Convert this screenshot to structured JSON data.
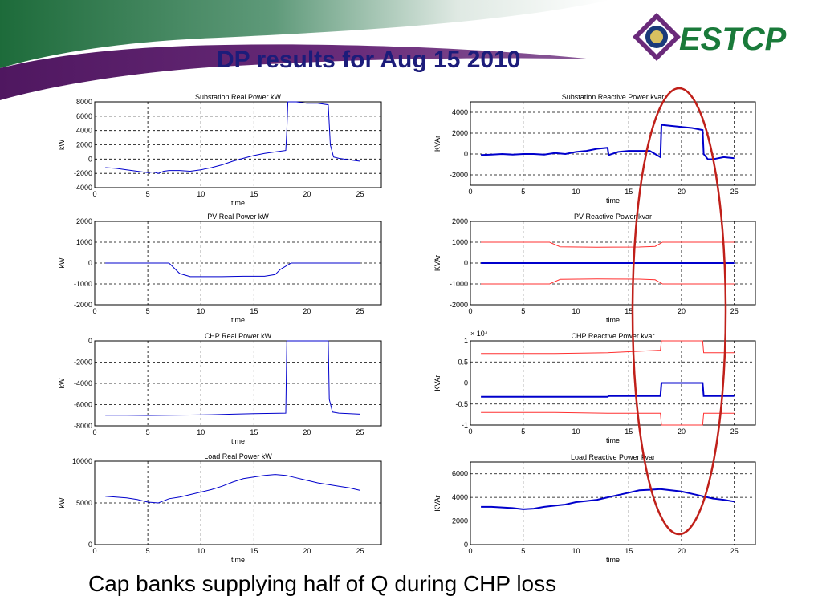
{
  "slide": {
    "title": "DP results for Aug 15 2010",
    "caption": "Cap banks supplying half of Q during CHP loss",
    "logo_text": "ESTCP"
  },
  "colors": {
    "title": "#1c1c7a",
    "swoosh_green": "#1f6a3a",
    "swoosh_purple": "#5a1a6a",
    "series_blue": "#0000cc",
    "limit_red": "#ff3030",
    "ellipse_red": "#c0201a",
    "logo_green": "#1a7a3a",
    "logo_purple": "#6a2a7a"
  },
  "chart_data": [
    {
      "type": "line",
      "title": "Substation Real Power kW",
      "xlabel": "time",
      "ylabel": "kW",
      "xlim": [
        0,
        27
      ],
      "ylim": [
        -4000,
        8000
      ],
      "xticks": [
        0,
        5,
        10,
        15,
        20,
        25
      ],
      "yticks": [
        -4000,
        -2000,
        0,
        2000,
        4000,
        6000,
        8000
      ],
      "grid": true,
      "series": [
        {
          "role": "value",
          "x": [
            1,
            2,
            3,
            4,
            5,
            5.5,
            6,
            6.5,
            7,
            8,
            9,
            10,
            11,
            12,
            13,
            14,
            15,
            16,
            17,
            18,
            18.1,
            18.2,
            19,
            20,
            21,
            22,
            22.2,
            22.5,
            23,
            24,
            25
          ],
          "y": [
            -1200,
            -1300,
            -1500,
            -1700,
            -1900,
            -1800,
            -2000,
            -1700,
            -1600,
            -1600,
            -1700,
            -1500,
            -1200,
            -800,
            -300,
            100,
            500,
            800,
            1000,
            1200,
            4000,
            8000,
            8000,
            7800,
            7800,
            7600,
            2000,
            300,
            100,
            -100,
            -300
          ]
        }
      ]
    },
    {
      "type": "line",
      "title": "Substation Reactive Power kvar",
      "xlabel": "time",
      "ylabel": "KVAr",
      "xlim": [
        0,
        27
      ],
      "ylim": [
        -3000,
        5000
      ],
      "xticks": [
        0,
        5,
        10,
        15,
        20,
        25
      ],
      "yticks": [
        -2000,
        0,
        2000,
        4000
      ],
      "grid": true,
      "series": [
        {
          "role": "value",
          "x": [
            1,
            2,
            3,
            4,
            5,
            6,
            7,
            8,
            9,
            10,
            11,
            12,
            13,
            13.1,
            14,
            15,
            16,
            17,
            18,
            18.1,
            19,
            20,
            21,
            22,
            22.1,
            22.5,
            23,
            24,
            25
          ],
          "y": [
            -100,
            -50,
            0,
            -50,
            0,
            0,
            -50,
            100,
            0,
            200,
            300,
            500,
            600,
            -100,
            200,
            300,
            300,
            300,
            -300,
            2800,
            2700,
            2600,
            2500,
            2300,
            0,
            -500,
            -500,
            -300,
            -400
          ]
        }
      ]
    },
    {
      "type": "line",
      "title": "PV Real Power kW",
      "xlabel": "time",
      "ylabel": "kW",
      "xlim": [
        0,
        27
      ],
      "ylim": [
        -2000,
        2000
      ],
      "xticks": [
        0,
        5,
        10,
        15,
        20,
        25
      ],
      "yticks": [
        -2000,
        -1000,
        0,
        1000,
        2000
      ],
      "grid": true,
      "series": [
        {
          "role": "value",
          "x": [
            1,
            7,
            8,
            9,
            10,
            12,
            14,
            16,
            17,
            17.5,
            18.5,
            19,
            25
          ],
          "y": [
            0,
            0,
            -500,
            -650,
            -650,
            -650,
            -630,
            -630,
            -550,
            -300,
            0,
            0,
            0
          ]
        }
      ]
    },
    {
      "type": "line",
      "title": "PV Reactive Power kvar",
      "xlabel": "time",
      "ylabel": "KVAr",
      "xlim": [
        0,
        27
      ],
      "ylim": [
        -2000,
        2000
      ],
      "xticks": [
        0,
        5,
        10,
        15,
        20,
        25
      ],
      "yticks": [
        -2000,
        -1000,
        0,
        1000,
        2000
      ],
      "grid": true,
      "series": [
        {
          "role": "value",
          "x": [
            1,
            25
          ],
          "y": [
            0,
            0
          ]
        },
        {
          "role": "limit",
          "x": [
            1,
            7.5,
            8.5,
            12,
            16,
            17.5,
            18.2,
            25
          ],
          "y": [
            1000,
            1000,
            780,
            760,
            770,
            800,
            1000,
            1000
          ]
        },
        {
          "role": "limit",
          "x": [
            1,
            7.5,
            8.5,
            12,
            16,
            17.5,
            18.2,
            25
          ],
          "y": [
            -1000,
            -1000,
            -780,
            -760,
            -770,
            -800,
            -1000,
            -1000
          ]
        }
      ]
    },
    {
      "type": "line",
      "title": "CHP Real Power kW",
      "xlabel": "time",
      "ylabel": "kW",
      "xlim": [
        0,
        27
      ],
      "ylim": [
        -8000,
        0
      ],
      "xticks": [
        0,
        5,
        10,
        15,
        20,
        25
      ],
      "yticks": [
        -8000,
        -6000,
        -4000,
        -2000,
        0
      ],
      "grid": true,
      "series": [
        {
          "role": "value",
          "x": [
            1,
            3,
            5,
            7,
            9,
            11,
            13,
            15,
            18,
            18.1,
            22,
            22.1,
            22.4,
            23,
            25
          ],
          "y": [
            -7000,
            -7000,
            -7020,
            -7000,
            -6980,
            -6950,
            -6900,
            -6850,
            -6800,
            0,
            0,
            -5500,
            -6700,
            -6800,
            -6900
          ]
        }
      ]
    },
    {
      "type": "line",
      "title": "CHP Reactive Power kvar",
      "xlabel": "time",
      "ylabel": "KVAr",
      "exponent": "× 10⁴",
      "xlim": [
        0,
        27
      ],
      "ylim": [
        -1,
        1
      ],
      "xticks": [
        0,
        5,
        10,
        15,
        20,
        25
      ],
      "yticks": [
        -1,
        -0.5,
        0,
        0.5,
        1
      ],
      "grid": true,
      "series": [
        {
          "role": "value",
          "x": [
            1,
            13,
            13.1,
            18,
            18.1,
            22,
            22.1,
            25
          ],
          "y": [
            -0.33,
            -0.33,
            -0.31,
            -0.31,
            0,
            0,
            -0.31,
            -0.31
          ]
        },
        {
          "role": "limit",
          "x": [
            1,
            8,
            13,
            18,
            18.1,
            22,
            22.1,
            25
          ],
          "y": [
            0.7,
            0.7,
            0.72,
            0.78,
            1,
            1,
            0.72,
            0.72
          ]
        },
        {
          "role": "limit",
          "x": [
            1,
            8,
            13,
            18,
            18.1,
            22,
            22.1,
            25
          ],
          "y": [
            -0.7,
            -0.7,
            -0.72,
            -0.72,
            -1,
            -1,
            -0.72,
            -0.72
          ]
        }
      ]
    },
    {
      "type": "line",
      "title": "Load Real Power kW",
      "xlabel": "time",
      "ylabel": "kW",
      "xlim": [
        0,
        27
      ],
      "ylim": [
        0,
        10000
      ],
      "xticks": [
        0,
        5,
        10,
        15,
        20,
        25
      ],
      "yticks": [
        0,
        5000,
        10000
      ],
      "grid": true,
      "series": [
        {
          "role": "value",
          "x": [
            1,
            2,
            3,
            4,
            5,
            6,
            7,
            8,
            9,
            10,
            11,
            12,
            13,
            14,
            15,
            16,
            17,
            18,
            19,
            20,
            21,
            22,
            23,
            24,
            25
          ],
          "y": [
            5800,
            5700,
            5600,
            5400,
            5100,
            5000,
            5500,
            5700,
            6000,
            6300,
            6600,
            7000,
            7500,
            7900,
            8100,
            8300,
            8400,
            8300,
            8000,
            7700,
            7400,
            7200,
            7000,
            6800,
            6500
          ]
        }
      ]
    },
    {
      "type": "line",
      "title": "Load Reactive Power kvar",
      "xlabel": "time",
      "ylabel": "KVAr",
      "xlim": [
        0,
        27
      ],
      "ylim": [
        0,
        7000
      ],
      "xticks": [
        0,
        5,
        10,
        15,
        20,
        25
      ],
      "yticks": [
        0,
        2000,
        4000,
        6000
      ],
      "grid": true,
      "series": [
        {
          "role": "value",
          "x": [
            1,
            2,
            3,
            4,
            5,
            6,
            7,
            8,
            9,
            10,
            11,
            12,
            13,
            14,
            15,
            16,
            17,
            18,
            19,
            20,
            21,
            22,
            23,
            24,
            25
          ],
          "y": [
            3200,
            3200,
            3150,
            3100,
            3000,
            3050,
            3200,
            3300,
            3400,
            3600,
            3700,
            3800,
            4000,
            4200,
            4400,
            4600,
            4650,
            4700,
            4600,
            4500,
            4300,
            4100,
            3900,
            3800,
            3650
          ]
        }
      ]
    }
  ]
}
